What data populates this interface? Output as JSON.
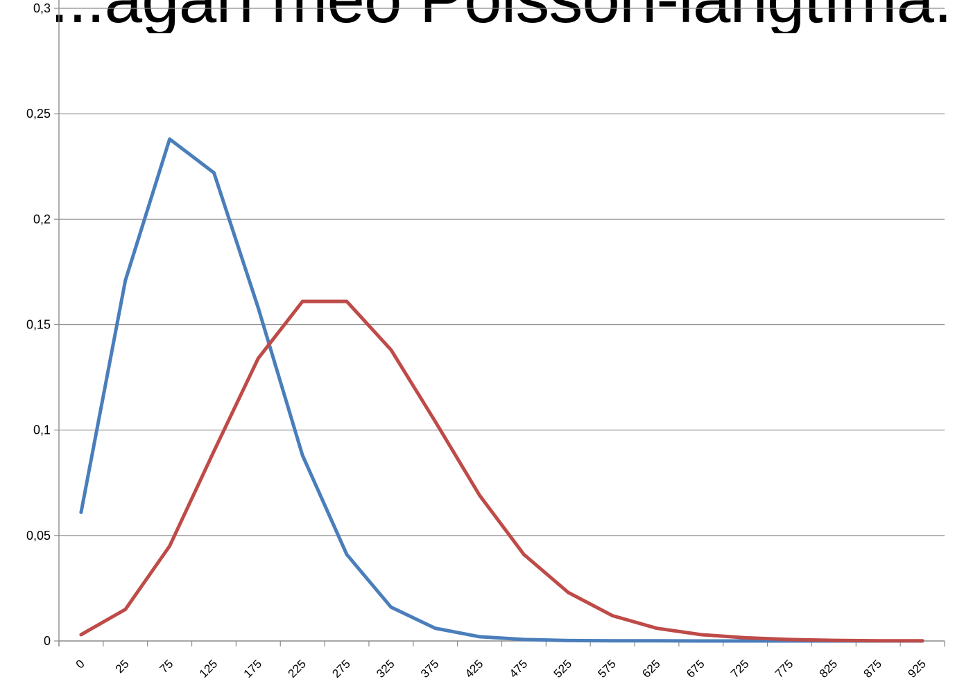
{
  "chart_data": {
    "type": "line",
    "title": "...ágan meo Poisson-langtíma...",
    "xlabel": "",
    "ylabel": "",
    "ylim": [
      0,
      0.3
    ],
    "y_ticks": [
      "0",
      "0,05",
      "0,1",
      "0,15",
      "0,2",
      "0,25",
      "0,3"
    ],
    "categories": [
      "0",
      "25",
      "75",
      "125",
      "175",
      "225",
      "275",
      "325",
      "375",
      "425",
      "475",
      "525",
      "575",
      "625",
      "675",
      "725",
      "775",
      "825",
      "875",
      "925"
    ],
    "grid": true,
    "series": [
      {
        "color": "#4a7ebb",
        "values": [
          0.061,
          0.171,
          0.238,
          0.222,
          0.158,
          0.088,
          0.041,
          0.016,
          0.006,
          0.002,
          0.0007,
          0.0002,
          0.0001,
          0.0001,
          0,
          0,
          0,
          0,
          0,
          0
        ]
      },
      {
        "color": "#be4b48",
        "values": [
          0.003,
          0.015,
          0.045,
          0.09,
          0.134,
          0.161,
          0.161,
          0.138,
          0.104,
          0.069,
          0.041,
          0.023,
          0.012,
          0.006,
          0.003,
          0.0015,
          0.0007,
          0.0003,
          0.0001,
          0.0001
        ]
      }
    ]
  }
}
